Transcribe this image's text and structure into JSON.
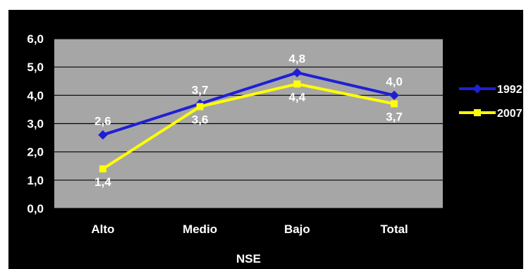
{
  "chart_data": {
    "type": "line",
    "categories": [
      "Alto",
      "Medio",
      "Bajo",
      "Total"
    ],
    "series": [
      {
        "name": "1992",
        "values": [
          2.6,
          3.7,
          4.8,
          4.0
        ],
        "color": "#1f1fd6",
        "marker": "diamond"
      },
      {
        "name": "2007",
        "values": [
          1.4,
          3.6,
          4.4,
          3.7
        ],
        "color": "#ffff00",
        "marker": "square"
      }
    ],
    "data_labels": {
      "1992": [
        "2,6",
        "3,7",
        "4,8",
        "4,0"
      ],
      "2007": [
        "1,4",
        "3,6",
        "4,4",
        "3,7"
      ]
    },
    "ylim": [
      0,
      6
    ],
    "yticks": [
      0,
      1,
      2,
      3,
      4,
      5,
      6
    ],
    "ytick_labels": [
      "0,0",
      "1,0",
      "2,0",
      "3,0",
      "4,0",
      "5,0",
      "6,0"
    ],
    "xlabel": "NSE",
    "ylabel": "",
    "title": "",
    "grid": true,
    "legend_position": "right",
    "colors": {
      "background": "#000000",
      "plot_area": "#a6a6a6",
      "gridline": "#000000",
      "text": "#ffffff"
    }
  }
}
